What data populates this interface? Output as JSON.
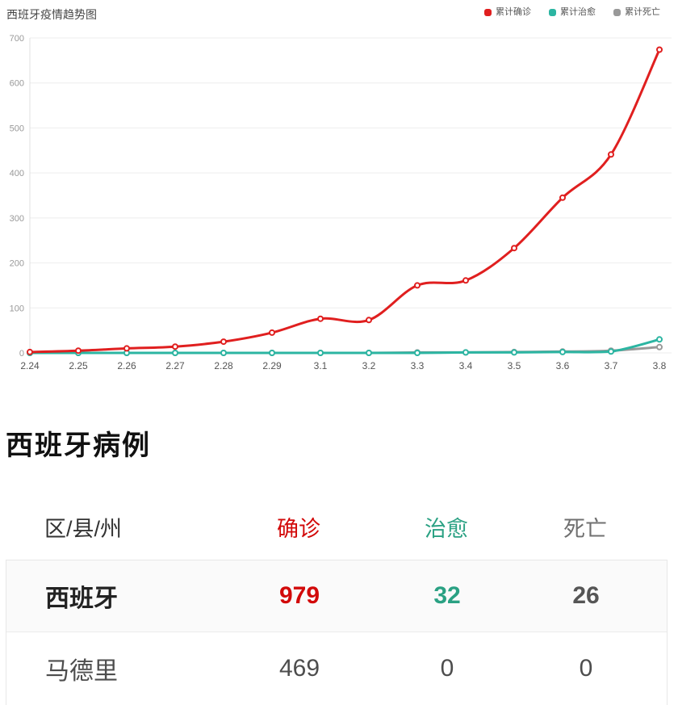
{
  "chart_data": {
    "type": "line",
    "title": "西班牙疫情趋势图",
    "x": [
      "2.24",
      "2.25",
      "2.26",
      "2.27",
      "2.28",
      "2.29",
      "3.1",
      "3.2",
      "3.3",
      "3.4",
      "3.5",
      "3.6",
      "3.7",
      "3.8"
    ],
    "series": [
      {
        "name": "累计确诊",
        "color": "#e01f1f",
        "values": [
          2,
          5,
          10,
          14,
          25,
          45,
          76,
          73,
          150,
          161,
          233,
          345,
          441,
          674
        ]
      },
      {
        "name": "累计治愈",
        "color": "#2cb5a2",
        "values": [
          0,
          0,
          0,
          0,
          0,
          0,
          0,
          0,
          0,
          1,
          1,
          2,
          3,
          30
        ]
      },
      {
        "name": "累计死亡",
        "color": "#999999",
        "values": [
          0,
          0,
          0,
          0,
          0,
          0,
          0,
          0,
          1,
          1,
          2,
          3,
          5,
          13
        ]
      }
    ],
    "ylim": [
      0,
      700
    ],
    "y_ticks": [
      0,
      100,
      200,
      300,
      400,
      500,
      600,
      700
    ],
    "grid": true,
    "smooth": true,
    "markers": "empty-circle",
    "legend_position": "top-right",
    "axis_colors": {
      "grid": "#eeeeee",
      "axis_line": "#e0e0e0",
      "y_label": "#999999",
      "x_label": "#555555"
    }
  },
  "section": {
    "heading": "西班牙病例"
  },
  "table": {
    "columns": [
      {
        "label": "区/县/州",
        "color": "#333333"
      },
      {
        "label": "确诊",
        "color": "#d20a0a"
      },
      {
        "label": "治愈",
        "color": "#2aa183"
      },
      {
        "label": "死亡",
        "color": "#707070"
      }
    ],
    "value_colors": [
      "#222222",
      "#d20a0a",
      "#2aa183",
      "#555555"
    ],
    "rows": [
      {
        "region": "西班牙",
        "confirmed": "979",
        "cured": "32",
        "deaths": "26"
      },
      {
        "region": "马德里",
        "confirmed": "469",
        "cured": "0",
        "deaths": "0"
      }
    ]
  }
}
